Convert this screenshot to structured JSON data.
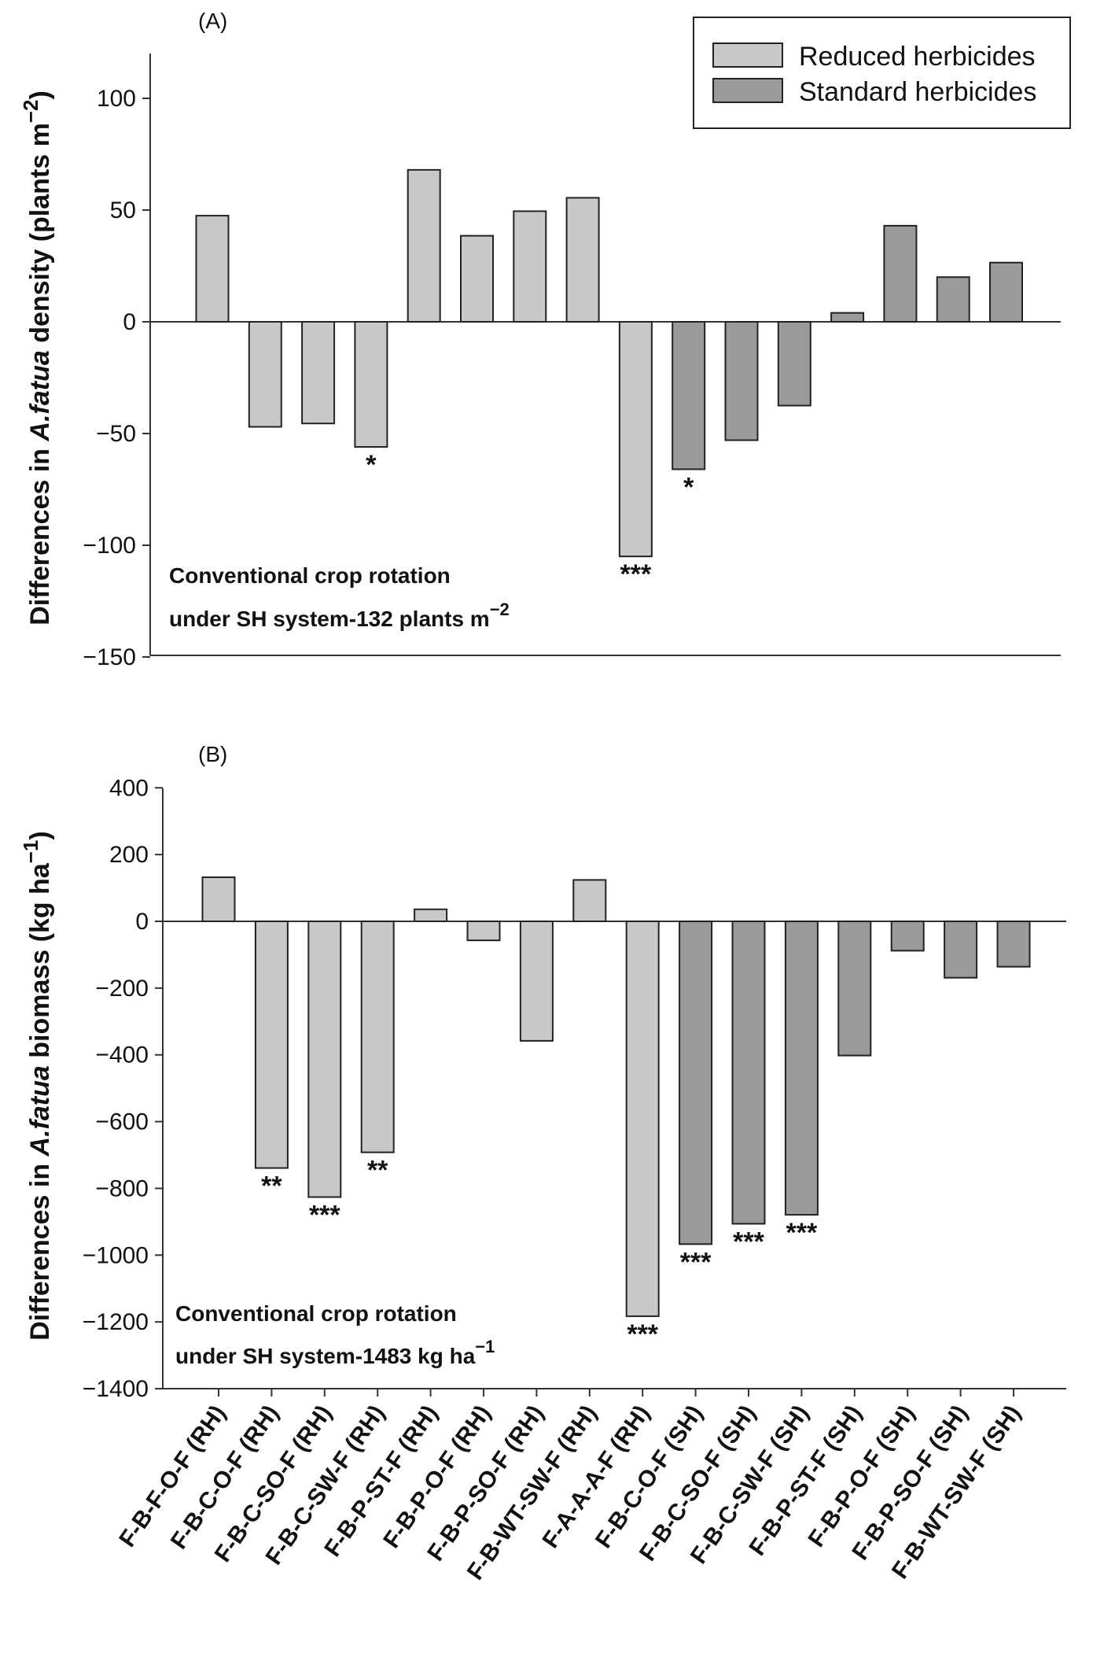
{
  "colors": {
    "reduced": "#c8c8c8",
    "standard": "#9a9a9a",
    "outline": "#222222",
    "axis": "#333333"
  },
  "legend": {
    "items": [
      {
        "label": "Reduced herbicides",
        "key": "reduced"
      },
      {
        "label": "Standard herbicides",
        "key": "standard"
      }
    ]
  },
  "chart_data": [
    {
      "type": "bar",
      "panel": "(A)",
      "title": "",
      "xlabel": "",
      "ylabel_parts": [
        "Differences in ",
        "A.fatua",
        " density (plants m",
        "−2",
        ")"
      ],
      "ylim": [
        -150,
        120
      ],
      "yticks": [
        100,
        50,
        0,
        -50,
        -100,
        -150
      ],
      "ytick_labels": [
        "100",
        "50",
        "0",
        "−50",
        "−100",
        "−150"
      ],
      "annotation": {
        "line1": "Conventional crop rotation",
        "line2": "under SH system-132 plants m",
        "sup": "−2"
      },
      "legend_position": "top-right",
      "categories": [
        "F-B-F-O-F (RH)",
        "F-B-C-O-F (RH)",
        "F-B-C-SO-F  (RH)",
        "F-B-C-SW-F (RH)",
        "F-B-P-ST-F (RH)",
        "F-B-P-O-F (RH)",
        "F-B-P-SO-F (RH)",
        "F-B-WT-SW-F (RH)",
        "F-A-A-A-F (RH)",
        "F-B-C-O-F (SH)",
        "F-B-C-SO-F  (SH)",
        "F-B-C-SW-F (SH)",
        "F-B-P-ST-F (SH)",
        "F-B-P-O-F (SH)",
        "F-B-P-SO-F (SH)",
        "F-B-WT-SW-F (SH)"
      ],
      "groups": [
        "reduced",
        "reduced",
        "reduced",
        "reduced",
        "reduced",
        "reduced",
        "reduced",
        "reduced",
        "reduced",
        "standard",
        "standard",
        "standard",
        "standard",
        "standard",
        "standard",
        "standard"
      ],
      "values": [
        47.5,
        -47,
        -45.5,
        -56,
        68,
        38.5,
        49.5,
        55.5,
        -105,
        -66,
        -53,
        -37.5,
        4,
        43,
        20,
        26.5
      ],
      "significance": [
        "",
        "",
        "",
        "*",
        "",
        "",
        "",
        "",
        "***",
        "*",
        "",
        "",
        "",
        "",
        "",
        ""
      ],
      "grid": false
    },
    {
      "type": "bar",
      "panel": "(B)",
      "title": "",
      "xlabel": "",
      "ylabel_parts": [
        "Differences in ",
        "A.fatua",
        " biomass (kg ha",
        "−1",
        ")"
      ],
      "ylim": [
        -1400,
        400
      ],
      "yticks": [
        400,
        200,
        0,
        -200,
        -400,
        -600,
        -800,
        -1000,
        -1200,
        -1400
      ],
      "ytick_labels": [
        "400",
        "200",
        "0",
        "−200",
        "−400",
        "−600",
        "−800",
        "−1000",
        "−1200",
        "−1400"
      ],
      "annotation": {
        "line1": "Conventional crop rotation",
        "line2": "under SH system-1483 kg ha",
        "sup": "−1"
      },
      "categories": [
        "F-B-F-O-F (RH)",
        "F-B-C-O-F (RH)",
        "F-B-C-SO-F  (RH)",
        "F-B-C-SW-F (RH)",
        "F-B-P-ST-F (RH)",
        "F-B-P-O-F (RH)",
        "F-B-P-SO-F (RH)",
        "F-B-WT-SW-F (RH)",
        "F-A-A-A-F (RH)",
        "F-B-C-O-F (SH)",
        "F-B-C-SO-F  (SH)",
        "F-B-C-SW-F (SH)",
        "F-B-P-ST-F (SH)",
        "F-B-P-O-F (SH)",
        "F-B-P-SO-F (SH)",
        "F-B-WT-SW-F (SH)"
      ],
      "groups": [
        "reduced",
        "reduced",
        "reduced",
        "reduced",
        "reduced",
        "reduced",
        "reduced",
        "reduced",
        "reduced",
        "standard",
        "standard",
        "standard",
        "standard",
        "standard",
        "standard",
        "standard"
      ],
      "values": [
        132,
        -739,
        -826,
        -692,
        36,
        -57,
        -358,
        124,
        -1183,
        -967,
        -906,
        -879,
        -402,
        -88,
        -169,
        -136
      ],
      "significance": [
        "",
        "**",
        "***",
        "**",
        "",
        "",
        "",
        "",
        "***",
        "***",
        "***",
        "***",
        "",
        "",
        "",
        ""
      ],
      "grid": false
    }
  ]
}
